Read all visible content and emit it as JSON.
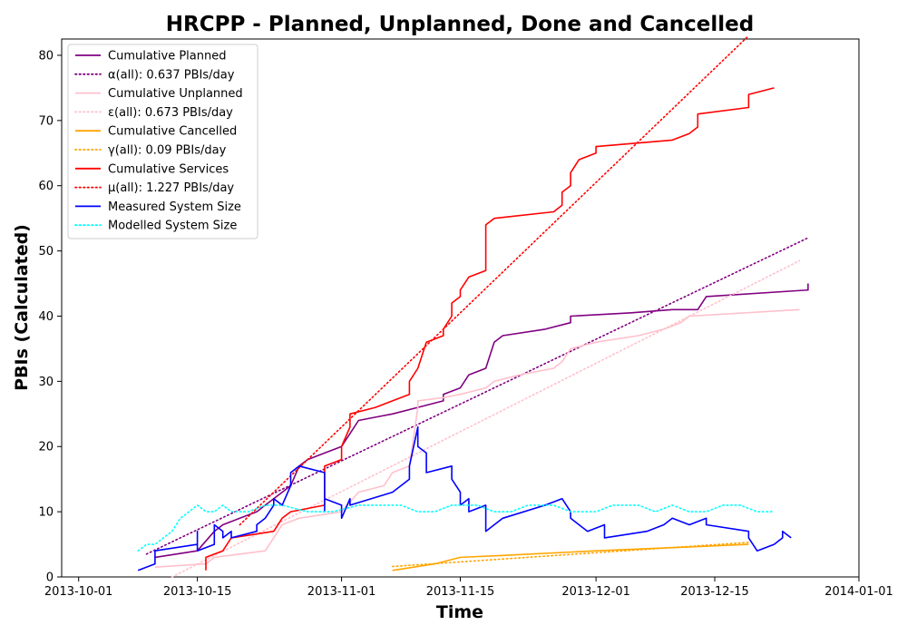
{
  "chart_data": {
    "type": "line",
    "title": "HRCPP - Planned, Unplanned, Done  and Cancelled",
    "xlabel": "Time",
    "ylabel": "PBIs (Calculated)",
    "xlim": [
      "2013-09-29",
      "2014-01-01"
    ],
    "ylim": [
      0,
      82.5
    ],
    "x_ticks": [
      {
        "date": "2013-10-01",
        "label": "2013-10-01"
      },
      {
        "date": "2013-10-15",
        "label": "2013-10-15"
      },
      {
        "date": "2013-11-01",
        "label": "2013-11-01"
      },
      {
        "date": "2013-11-15",
        "label": "2013-11-15"
      },
      {
        "date": "2013-12-01",
        "label": "2013-12-01"
      },
      {
        "date": "2013-12-15",
        "label": "2013-12-15"
      },
      {
        "date": "2014-01-01",
        "label": "2014-01-01"
      }
    ],
    "y_ticks": [
      0,
      10,
      20,
      30,
      40,
      50,
      60,
      70,
      80
    ],
    "grid": false,
    "legend_position": "top-left",
    "series": [
      {
        "name": "Cumulative Planned",
        "color": "#800080",
        "style": "solid",
        "points": [
          [
            "2013-10-10",
            3
          ],
          [
            "2013-10-15",
            4
          ],
          [
            "2013-10-17",
            7
          ],
          [
            "2013-10-18",
            8
          ],
          [
            "2013-10-20",
            9
          ],
          [
            "2013-10-22",
            10
          ],
          [
            "2013-10-23",
            11
          ],
          [
            "2013-10-24",
            12
          ],
          [
            "2013-10-25",
            13
          ],
          [
            "2013-10-26",
            14
          ],
          [
            "2013-10-27",
            17
          ],
          [
            "2013-10-28",
            18
          ],
          [
            "2013-10-30",
            19
          ],
          [
            "2013-11-01",
            20
          ],
          [
            "2013-11-02",
            22
          ],
          [
            "2013-11-03",
            24
          ],
          [
            "2013-11-05",
            24.5
          ],
          [
            "2013-11-07",
            25
          ],
          [
            "2013-11-10",
            26
          ],
          [
            "2013-11-13",
            27
          ],
          [
            "2013-11-13",
            28
          ],
          [
            "2013-11-15",
            29
          ],
          [
            "2013-11-16",
            31
          ],
          [
            "2013-11-18",
            32
          ],
          [
            "2013-11-19",
            36
          ],
          [
            "2013-11-20",
            37
          ],
          [
            "2013-11-25",
            38
          ],
          [
            "2013-11-28",
            39
          ],
          [
            "2013-11-28",
            40
          ],
          [
            "2013-12-05",
            40.5
          ],
          [
            "2013-12-10",
            41
          ],
          [
            "2013-12-13",
            41
          ],
          [
            "2013-12-14",
            43
          ],
          [
            "2013-12-26",
            44
          ],
          [
            "2013-12-26",
            45
          ]
        ]
      },
      {
        "name": "α(all): 0.637 PBIs/day",
        "color": "#800080",
        "style": "dotted",
        "points": [
          [
            "2013-10-09",
            3.5
          ],
          [
            "2013-12-26",
            52
          ]
        ]
      },
      {
        "name": "Cumulative Unplanned",
        "color": "#ffc0cb",
        "style": "solid",
        "points": [
          [
            "2013-10-10",
            1.5
          ],
          [
            "2013-10-16",
            2
          ],
          [
            "2013-10-17",
            3
          ],
          [
            "2013-10-20",
            3.5
          ],
          [
            "2013-10-23",
            4
          ],
          [
            "2013-10-24",
            6
          ],
          [
            "2013-10-25",
            8
          ],
          [
            "2013-10-27",
            9
          ],
          [
            "2013-11-01",
            10
          ],
          [
            "2013-11-03",
            13
          ],
          [
            "2013-11-06",
            14
          ],
          [
            "2013-11-07",
            16
          ],
          [
            "2013-11-09",
            17
          ],
          [
            "2013-11-10",
            26
          ],
          [
            "2013-11-10",
            27
          ],
          [
            "2013-11-13",
            27.5
          ],
          [
            "2013-11-15",
            28
          ],
          [
            "2013-11-18",
            29
          ],
          [
            "2013-11-19",
            30
          ],
          [
            "2013-11-22",
            31
          ],
          [
            "2013-11-26",
            32
          ],
          [
            "2013-11-27",
            33
          ],
          [
            "2013-11-28",
            35
          ],
          [
            "2013-12-01",
            36
          ],
          [
            "2013-12-06",
            37
          ],
          [
            "2013-12-09",
            38
          ],
          [
            "2013-12-11",
            39
          ],
          [
            "2013-12-12",
            40
          ],
          [
            "2013-12-25",
            41
          ]
        ]
      },
      {
        "name": "ε(all): 0.673 PBIs/day",
        "color": "#ffc0cb",
        "style": "dotted",
        "points": [
          [
            "2013-10-12",
            0
          ],
          [
            "2013-12-25",
            48.5
          ]
        ]
      },
      {
        "name": "Cumulative Cancelled",
        "color": "#ffa500",
        "style": "solid",
        "points": [
          [
            "2013-11-07",
            1
          ],
          [
            "2013-11-12",
            2
          ],
          [
            "2013-11-15",
            3
          ],
          [
            "2013-11-20",
            3.3
          ],
          [
            "2013-12-01",
            4
          ],
          [
            "2013-12-10",
            4.5
          ],
          [
            "2013-12-19",
            5
          ]
        ]
      },
      {
        "name": "γ(all): 0.09 PBIs/day",
        "color": "#ffa500",
        "style": "dotted",
        "points": [
          [
            "2013-11-07",
            1.6
          ],
          [
            "2013-12-19",
            5.3
          ]
        ]
      },
      {
        "name": "Cumulative Services",
        "color": "#ff0000",
        "style": "solid",
        "points": [
          [
            "2013-10-16",
            1
          ],
          [
            "2013-10-16",
            3
          ],
          [
            "2013-10-18",
            4
          ],
          [
            "2013-10-19",
            6
          ],
          [
            "2013-10-24",
            7
          ],
          [
            "2013-10-25",
            9
          ],
          [
            "2013-10-26",
            10
          ],
          [
            "2013-10-30",
            11
          ],
          [
            "2013-10-30",
            17
          ],
          [
            "2013-11-01",
            18
          ],
          [
            "2013-11-01",
            20
          ],
          [
            "2013-11-02",
            23
          ],
          [
            "2013-11-02",
            25
          ],
          [
            "2013-11-05",
            26
          ],
          [
            "2013-11-07",
            27
          ],
          [
            "2013-11-09",
            28
          ],
          [
            "2013-11-09",
            30
          ],
          [
            "2013-11-10",
            32
          ],
          [
            "2013-11-11",
            36
          ],
          [
            "2013-11-13",
            37
          ],
          [
            "2013-11-13",
            38
          ],
          [
            "2013-11-14",
            40
          ],
          [
            "2013-11-14",
            42
          ],
          [
            "2013-11-15",
            43
          ],
          [
            "2013-11-15",
            44
          ],
          [
            "2013-11-16",
            46
          ],
          [
            "2013-11-18",
            47
          ],
          [
            "2013-11-18",
            51
          ],
          [
            "2013-11-18",
            54
          ],
          [
            "2013-11-19",
            55
          ],
          [
            "2013-11-26",
            56
          ],
          [
            "2013-11-27",
            57
          ],
          [
            "2013-11-27",
            59
          ],
          [
            "2013-11-28",
            60
          ],
          [
            "2013-11-28",
            62
          ],
          [
            "2013-11-29",
            64
          ],
          [
            "2013-12-01",
            65
          ],
          [
            "2013-12-01",
            66
          ],
          [
            "2013-12-10",
            67
          ],
          [
            "2013-12-12",
            68
          ],
          [
            "2013-12-13",
            69
          ],
          [
            "2013-12-13",
            71
          ],
          [
            "2013-12-19",
            72
          ],
          [
            "2013-12-19",
            74
          ],
          [
            "2013-12-22",
            75
          ]
        ]
      },
      {
        "name": "μ(all): 1.227 PBIs/day",
        "color": "#ff0000",
        "style": "dotted",
        "points": [
          [
            "2013-10-20",
            8
          ],
          [
            "2013-12-19",
            83
          ]
        ]
      },
      {
        "name": "Measured System Size",
        "color": "#0000ff",
        "style": "solid",
        "points": [
          [
            "2013-10-08",
            1
          ],
          [
            "2013-10-10",
            2
          ],
          [
            "2013-10-10",
            4
          ],
          [
            "2013-10-15",
            5
          ],
          [
            "2013-10-15",
            7
          ],
          [
            "2013-10-15",
            4
          ],
          [
            "2013-10-17",
            5
          ],
          [
            "2013-10-17",
            8
          ],
          [
            "2013-10-18",
            7
          ],
          [
            "2013-10-18",
            6
          ],
          [
            "2013-10-19",
            7
          ],
          [
            "2013-10-19",
            6
          ],
          [
            "2013-10-22",
            7
          ],
          [
            "2013-10-22",
            8
          ],
          [
            "2013-10-23",
            9
          ],
          [
            "2013-10-24",
            11
          ],
          [
            "2013-10-24",
            12
          ],
          [
            "2013-10-25",
            11
          ],
          [
            "2013-10-26",
            14
          ],
          [
            "2013-10-26",
            16
          ],
          [
            "2013-10-27",
            17
          ],
          [
            "2013-10-30",
            16
          ],
          [
            "2013-10-30",
            10
          ],
          [
            "2013-10-30",
            12
          ],
          [
            "2013-11-01",
            11
          ],
          [
            "2013-11-01",
            9
          ],
          [
            "2013-11-02",
            12
          ],
          [
            "2013-11-02",
            11
          ],
          [
            "2013-11-07",
            13
          ],
          [
            "2013-11-09",
            15
          ],
          [
            "2013-11-09",
            17
          ],
          [
            "2013-11-10",
            23
          ],
          [
            "2013-11-10",
            20
          ],
          [
            "2013-11-11",
            19
          ],
          [
            "2013-11-11",
            16
          ],
          [
            "2013-11-14",
            17
          ],
          [
            "2013-11-14",
            15
          ],
          [
            "2013-11-15",
            13
          ],
          [
            "2013-11-15",
            11
          ],
          [
            "2013-11-16",
            12
          ],
          [
            "2013-11-16",
            10
          ],
          [
            "2013-11-18",
            11
          ],
          [
            "2013-11-18",
            7
          ],
          [
            "2013-11-19",
            8
          ],
          [
            "2013-11-20",
            9
          ],
          [
            "2013-11-25",
            11
          ],
          [
            "2013-11-27",
            12
          ],
          [
            "2013-11-28",
            10
          ],
          [
            "2013-11-28",
            9
          ],
          [
            "2013-11-30",
            7
          ],
          [
            "2013-12-02",
            8
          ],
          [
            "2013-12-02",
            6
          ],
          [
            "2013-12-07",
            7
          ],
          [
            "2013-12-09",
            8
          ],
          [
            "2013-12-10",
            9
          ],
          [
            "2013-12-12",
            8
          ],
          [
            "2013-12-14",
            9
          ],
          [
            "2013-12-14",
            8
          ],
          [
            "2013-12-19",
            7
          ],
          [
            "2013-12-19",
            6
          ],
          [
            "2013-12-20",
            4
          ],
          [
            "2013-12-22",
            5
          ],
          [
            "2013-12-23",
            6
          ],
          [
            "2013-12-23",
            7
          ],
          [
            "2013-12-24",
            6
          ]
        ]
      },
      {
        "name": "Modelled System Size",
        "color": "#00ffff",
        "style": "dotted",
        "points": [
          [
            "2013-10-08",
            4
          ],
          [
            "2013-10-09",
            5
          ],
          [
            "2013-10-10",
            5
          ],
          [
            "2013-10-11",
            6
          ],
          [
            "2013-10-12",
            7
          ],
          [
            "2013-10-13",
            9
          ],
          [
            "2013-10-14",
            10
          ],
          [
            "2013-10-15",
            11
          ],
          [
            "2013-10-16",
            10
          ],
          [
            "2013-10-17",
            10
          ],
          [
            "2013-10-18",
            11
          ],
          [
            "2013-10-19",
            10
          ],
          [
            "2013-10-21",
            10
          ],
          [
            "2013-10-23",
            11
          ],
          [
            "2013-10-25",
            11
          ],
          [
            "2013-10-28",
            10
          ],
          [
            "2013-10-31",
            10
          ],
          [
            "2013-11-03",
            11
          ],
          [
            "2013-11-06",
            11
          ],
          [
            "2013-11-08",
            11
          ],
          [
            "2013-11-10",
            10
          ],
          [
            "2013-11-12",
            10
          ],
          [
            "2013-11-14",
            11
          ],
          [
            "2013-11-17",
            11
          ],
          [
            "2013-11-19",
            10
          ],
          [
            "2013-11-21",
            10
          ],
          [
            "2013-11-23",
            11
          ],
          [
            "2013-11-26",
            11
          ],
          [
            "2013-11-28",
            10
          ],
          [
            "2013-12-01",
            10
          ],
          [
            "2013-12-03",
            11
          ],
          [
            "2013-12-06",
            11
          ],
          [
            "2013-12-08",
            10
          ],
          [
            "2013-12-10",
            11
          ],
          [
            "2013-12-12",
            10
          ],
          [
            "2013-12-14",
            10
          ],
          [
            "2013-12-16",
            11
          ],
          [
            "2013-12-18",
            11
          ],
          [
            "2013-12-20",
            10
          ],
          [
            "2013-12-22",
            10
          ]
        ]
      }
    ]
  }
}
